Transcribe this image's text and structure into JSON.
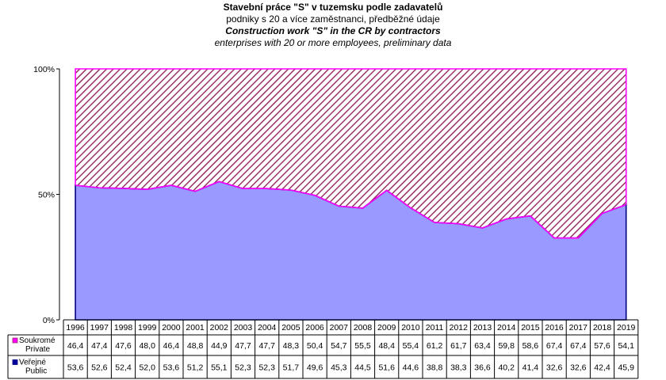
{
  "title_cz": "Stavební práce \"S\" v tuzemsku podle zadavatelů",
  "subtitle_cz": "podniky s 20 a více zaměstnanci, předběžné údaje",
  "title_en": "Construction work \"S\" in the CR by contractors",
  "subtitle_en": "enterprises with 20 or more employees, preliminary data",
  "chart_data": {
    "type": "area",
    "stacked": true,
    "percent": true,
    "categories": [
      "1996",
      "1997",
      "1998",
      "1999",
      "2000",
      "2001",
      "2002",
      "2003",
      "2004",
      "2005",
      "2006",
      "2007",
      "2008",
      "2009",
      "2010",
      "2011",
      "2012",
      "2013",
      "2014",
      "2015",
      "2016",
      "2017",
      "2018",
      "2019"
    ],
    "y_ticks": [
      "0%",
      "50%",
      "100%"
    ],
    "ylim": [
      0,
      100
    ],
    "series": [
      {
        "name_cz": "Veřejné",
        "name_en": "Public",
        "color": "#9999ff",
        "values": [
          53.6,
          52.6,
          52.4,
          52.0,
          53.6,
          51.2,
          55.1,
          52.3,
          52.3,
          51.7,
          49.6,
          45.3,
          44.5,
          51.6,
          44.6,
          38.8,
          38.3,
          36.6,
          40.2,
          41.4,
          32.6,
          32.6,
          42.4,
          45.9
        ],
        "labels": [
          "53,6",
          "52,6",
          "52,4",
          "52,0",
          "53,6",
          "51,2",
          "55,1",
          "52,3",
          "52,3",
          "51,7",
          "49,6",
          "45,3",
          "44,5",
          "51,6",
          "44,6",
          "38,8",
          "38,3",
          "36,6",
          "40,2",
          "41,4",
          "32,6",
          "32,6",
          "42,4",
          "45,9"
        ]
      },
      {
        "name_cz": "Soukromé",
        "name_en": "Private",
        "color": "#993366",
        "border": "#ff00ff",
        "values": [
          46.4,
          47.4,
          47.6,
          48.0,
          46.4,
          48.8,
          44.9,
          47.7,
          47.7,
          48.3,
          50.4,
          54.7,
          55.5,
          48.4,
          55.4,
          61.2,
          61.7,
          63.4,
          59.8,
          58.6,
          67.4,
          67.4,
          57.6,
          54.1
        ],
        "labels": [
          "46,4",
          "47,4",
          "47,6",
          "48,0",
          "46,4",
          "48,8",
          "44,9",
          "47,7",
          "47,7",
          "48,3",
          "50,4",
          "54,7",
          "55,5",
          "48,4",
          "55,4",
          "61,2",
          "61,7",
          "63,4",
          "59,8",
          "58,6",
          "67,4",
          "67,4",
          "57,6",
          "54,1"
        ]
      }
    ],
    "grid": false,
    "legend": "data-table"
  }
}
